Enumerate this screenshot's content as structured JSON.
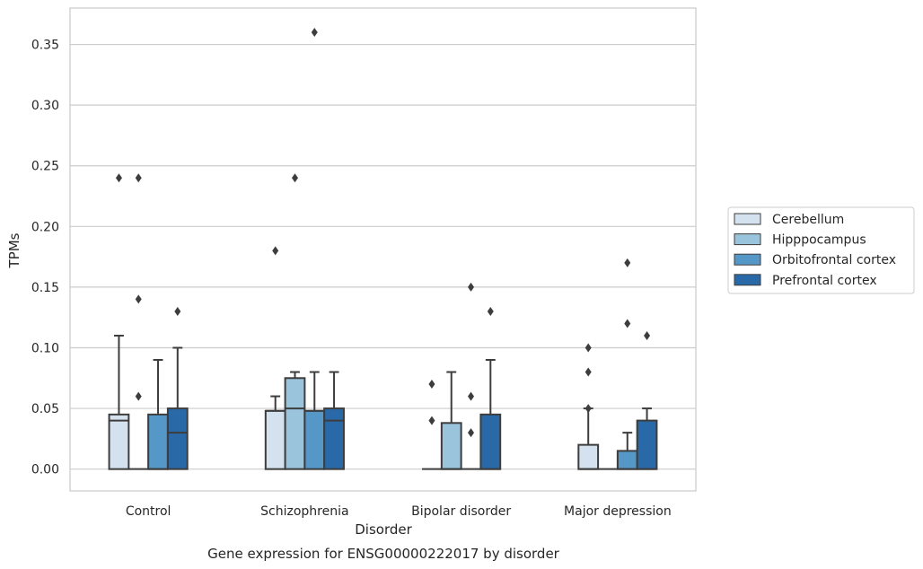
{
  "chart_data": {
    "type": "box",
    "title": "Gene expression for ENSG00000222017 by disorder",
    "xlabel": "Disorder",
    "ylabel": "TPMs",
    "ylim": [
      -0.018,
      0.38
    ],
    "yticks": [
      "0.00",
      "0.05",
      "0.10",
      "0.15",
      "0.20",
      "0.25",
      "0.30",
      "0.35"
    ],
    "grid": "horizontal",
    "legend_position": "right",
    "categories": [
      "Control",
      "Schizophrenia",
      "Bipolar disorder",
      "Major depression"
    ],
    "series": [
      {
        "name": "Cerebellum",
        "color": "#d4e2f0",
        "boxes": [
          {
            "q1": 0.0,
            "median": 0.04,
            "q3": 0.045,
            "whisker_low": 0.0,
            "whisker_high": 0.11,
            "outliers": [
              0.24
            ]
          },
          {
            "q1": 0.0,
            "median": 0.048,
            "q3": 0.048,
            "whisker_low": 0.0,
            "whisker_high": 0.06,
            "outliers": [
              0.18
            ]
          },
          {
            "q1": 0.0,
            "median": 0.0,
            "q3": 0.0,
            "whisker_low": 0.0,
            "whisker_high": 0.0,
            "outliers": [
              0.04,
              0.07
            ]
          },
          {
            "q1": 0.0,
            "median": 0.0,
            "q3": 0.02,
            "whisker_low": 0.0,
            "whisker_high": 0.05,
            "outliers": [
              0.05,
              0.08,
              0.1
            ]
          }
        ]
      },
      {
        "name": "Hipppocampus",
        "color": "#9ac3dc",
        "boxes": [
          {
            "q1": 0.0,
            "median": 0.0,
            "q3": 0.0,
            "whisker_low": 0.0,
            "whisker_high": 0.0,
            "outliers": [
              0.06,
              0.14,
              0.24
            ]
          },
          {
            "q1": 0.0,
            "median": 0.05,
            "q3": 0.075,
            "whisker_low": 0.0,
            "whisker_high": 0.08,
            "outliers": [
              0.24
            ]
          },
          {
            "q1": 0.0,
            "median": 0.0,
            "q3": 0.038,
            "whisker_low": 0.0,
            "whisker_high": 0.08,
            "outliers": []
          },
          {
            "q1": 0.0,
            "median": 0.0,
            "q3": 0.0,
            "whisker_low": 0.0,
            "whisker_high": 0.0,
            "outliers": []
          }
        ]
      },
      {
        "name": "Orbitofrontal cortex",
        "color": "#5597c6",
        "boxes": [
          {
            "q1": 0.0,
            "median": 0.0,
            "q3": 0.045,
            "whisker_low": 0.0,
            "whisker_high": 0.09,
            "outliers": []
          },
          {
            "q1": 0.0,
            "median": 0.048,
            "q3": 0.048,
            "whisker_low": 0.0,
            "whisker_high": 0.08,
            "outliers": [
              0.36
            ]
          },
          {
            "q1": 0.0,
            "median": 0.0,
            "q3": 0.0,
            "whisker_low": 0.0,
            "whisker_high": 0.0,
            "outliers": [
              0.03,
              0.06,
              0.15
            ]
          },
          {
            "q1": 0.0,
            "median": 0.0,
            "q3": 0.015,
            "whisker_low": 0.0,
            "whisker_high": 0.03,
            "outliers": [
              0.12,
              0.17
            ]
          }
        ]
      },
      {
        "name": "Prefrontal cortex",
        "color": "#2a69a8",
        "boxes": [
          {
            "q1": 0.0,
            "median": 0.03,
            "q3": 0.05,
            "whisker_low": 0.0,
            "whisker_high": 0.1,
            "outliers": [
              0.13
            ]
          },
          {
            "q1": 0.0,
            "median": 0.04,
            "q3": 0.05,
            "whisker_low": 0.0,
            "whisker_high": 0.08,
            "outliers": []
          },
          {
            "q1": 0.0,
            "median": 0.0,
            "q3": 0.045,
            "whisker_low": 0.0,
            "whisker_high": 0.09,
            "outliers": [
              0.13
            ]
          },
          {
            "q1": 0.0,
            "median": 0.0,
            "q3": 0.04,
            "whisker_low": 0.0,
            "whisker_high": 0.05,
            "outliers": [
              0.11
            ]
          }
        ]
      }
    ]
  }
}
